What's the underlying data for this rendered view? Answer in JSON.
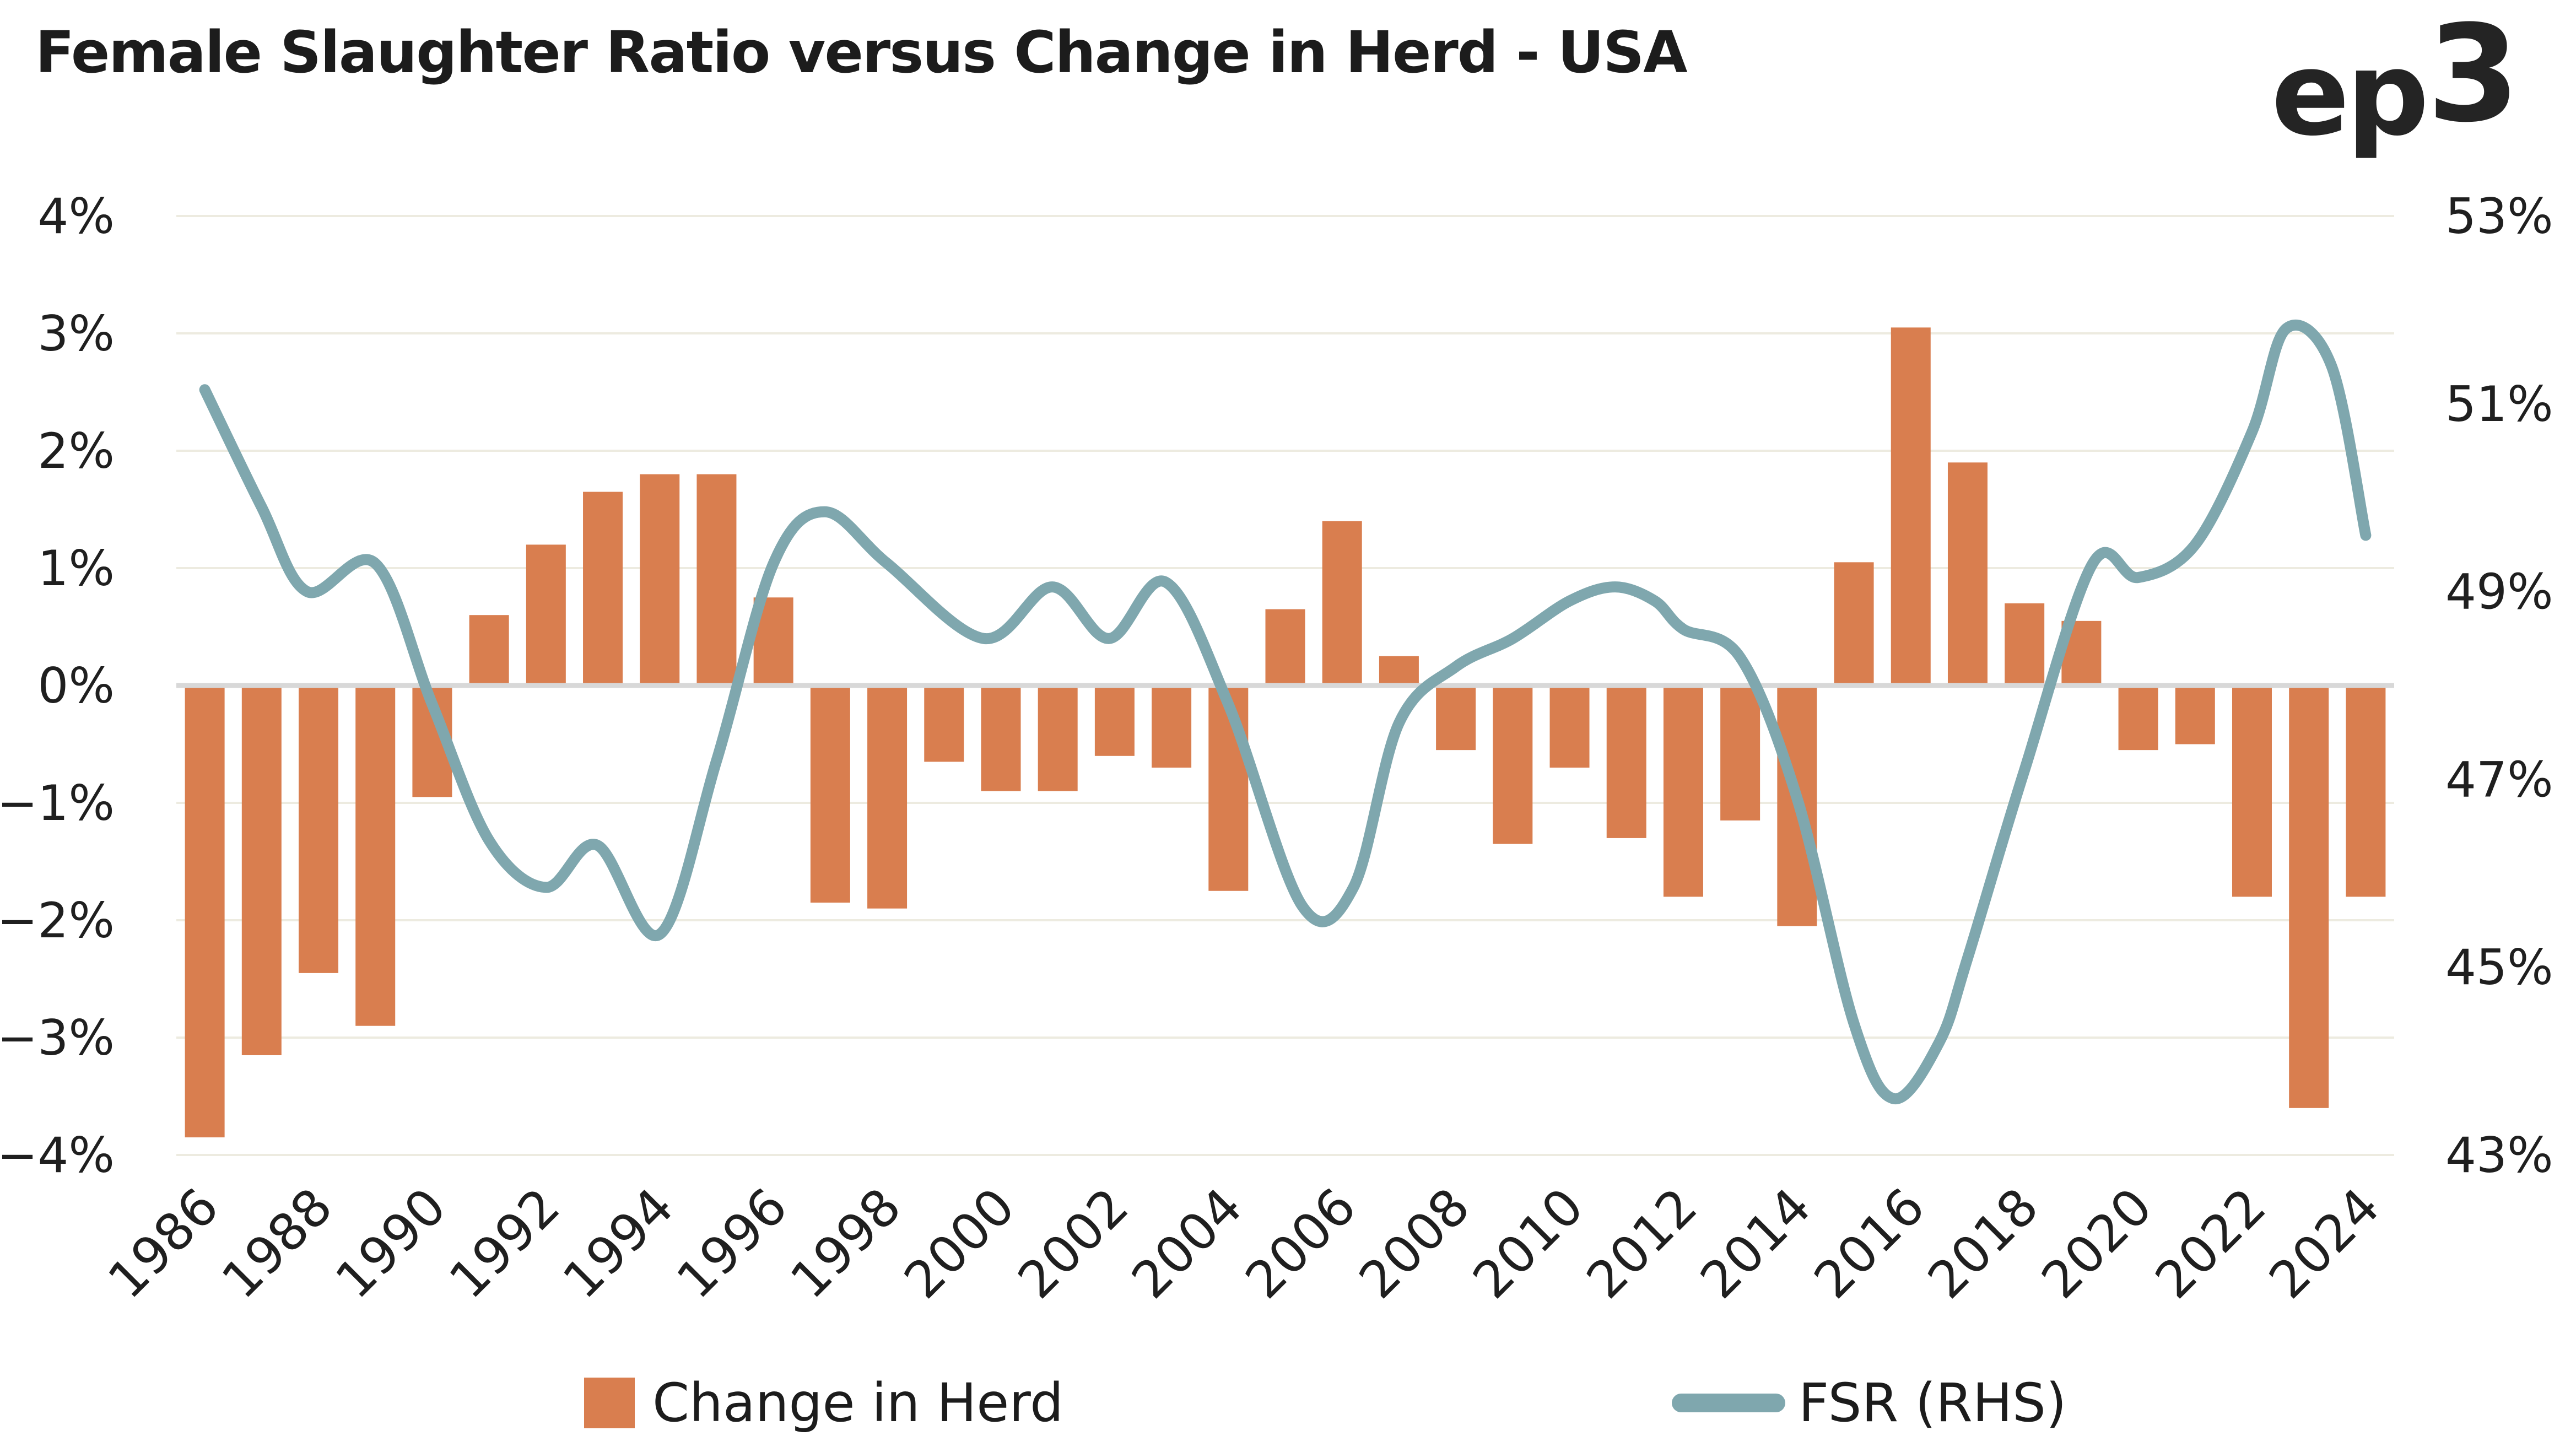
{
  "title": "Female Slaughter Ratio versus Change in Herd - USA",
  "logo": {
    "main": "ep",
    "sup": "3"
  },
  "legend": {
    "bar_label": "Change in Herd",
    "line_label": "FSR (RHS)"
  },
  "colors": {
    "bar": "#D97E4F",
    "line": "#7FA7AE",
    "grid": "#EDEBE0",
    "zero_line": "#D8D8D8",
    "text": "#1F1F1F",
    "background": "#FFFFFF"
  },
  "chart_data": {
    "type": "bar+line combo, dual axis",
    "title": "Female Slaughter Ratio versus Change in Herd - USA",
    "grid": "horizontal gridlines at every 1% of left axis",
    "legend_position": "bottom",
    "categories": [
      1986,
      1987,
      1988,
      1989,
      1990,
      1991,
      1992,
      1993,
      1994,
      1995,
      1996,
      1997,
      1998,
      1999,
      2000,
      2001,
      2002,
      2003,
      2004,
      2005,
      2006,
      2007,
      2008,
      2009,
      2010,
      2011,
      2012,
      2013,
      2014,
      2015,
      2016,
      2017,
      2018,
      2019,
      2020,
      2021,
      2022,
      2023,
      2024
    ],
    "x_tick_labels": [
      "1986",
      "1988",
      "1990",
      "1992",
      "1994",
      "1996",
      "1998",
      "2000",
      "2002",
      "2004",
      "2006",
      "2008",
      "2010",
      "2012",
      "2014",
      "2016",
      "2018",
      "2020",
      "2022",
      "2024"
    ],
    "left_axis": {
      "min": -4,
      "max": 4,
      "unit": "%",
      "ticks": [
        "4%",
        "3%",
        "2%",
        "1%",
        "0%",
        "−1%",
        "−2%",
        "−3%",
        "−4%"
      ]
    },
    "right_axis": {
      "min": 43,
      "max": 53,
      "unit": "%",
      "ticks": [
        "53%",
        "51%",
        "49%",
        "47%",
        "45%",
        "43%"
      ]
    },
    "series": [
      {
        "name": "Change in Herd",
        "type": "bar",
        "axis": "left",
        "unit": "%",
        "values": [
          -3.85,
          -3.15,
          -2.45,
          -2.9,
          -0.95,
          0.6,
          1.2,
          1.65,
          1.8,
          1.8,
          0.75,
          -1.85,
          -1.9,
          -0.65,
          -0.9,
          -0.9,
          -0.6,
          -0.7,
          -1.75,
          0.65,
          1.4,
          0.25,
          -0.55,
          -1.35,
          -0.7,
          -1.3,
          -1.8,
          -1.15,
          -2.05,
          1.05,
          3.05,
          1.9,
          0.7,
          0.55,
          -0.55,
          -0.5,
          -1.8,
          -3.6,
          -1.8
        ]
      },
      {
        "name": "FSR (RHS)",
        "type": "line",
        "axis": "right",
        "unit": "%",
        "points": [
          [
            1986.0,
            51.15
          ],
          [
            1987.0,
            49.9
          ],
          [
            1987.8,
            49.0
          ],
          [
            1989.0,
            49.3
          ],
          [
            1990.0,
            47.8
          ],
          [
            1991.0,
            46.35
          ],
          [
            1992.0,
            45.85
          ],
          [
            1992.9,
            46.3
          ],
          [
            1994.0,
            45.35
          ],
          [
            1995.0,
            47.2
          ],
          [
            1996.0,
            49.3
          ],
          [
            1996.9,
            49.85
          ],
          [
            1998.0,
            49.3
          ],
          [
            1999.7,
            48.5
          ],
          [
            2000.9,
            49.05
          ],
          [
            2001.9,
            48.5
          ],
          [
            2002.9,
            49.1
          ],
          [
            2004.0,
            47.8
          ],
          [
            2005.3,
            45.65
          ],
          [
            2006.2,
            45.85
          ],
          [
            2007.0,
            47.6
          ],
          [
            2008.0,
            48.2
          ],
          [
            2009.0,
            48.5
          ],
          [
            2010.0,
            48.9
          ],
          [
            2010.8,
            49.05
          ],
          [
            2011.5,
            48.9
          ],
          [
            2012.0,
            48.6
          ],
          [
            2013.0,
            48.3
          ],
          [
            2014.0,
            46.8
          ],
          [
            2015.0,
            44.4
          ],
          [
            2015.7,
            43.6
          ],
          [
            2016.5,
            44.2
          ],
          [
            2017.0,
            45.1
          ],
          [
            2018.0,
            47.1
          ],
          [
            2019.2,
            49.3
          ],
          [
            2020.0,
            49.15
          ],
          [
            2021.0,
            49.5
          ],
          [
            2022.0,
            50.7
          ],
          [
            2022.6,
            51.8
          ],
          [
            2023.4,
            51.4
          ],
          [
            2024.0,
            49.6
          ]
        ]
      }
    ]
  }
}
